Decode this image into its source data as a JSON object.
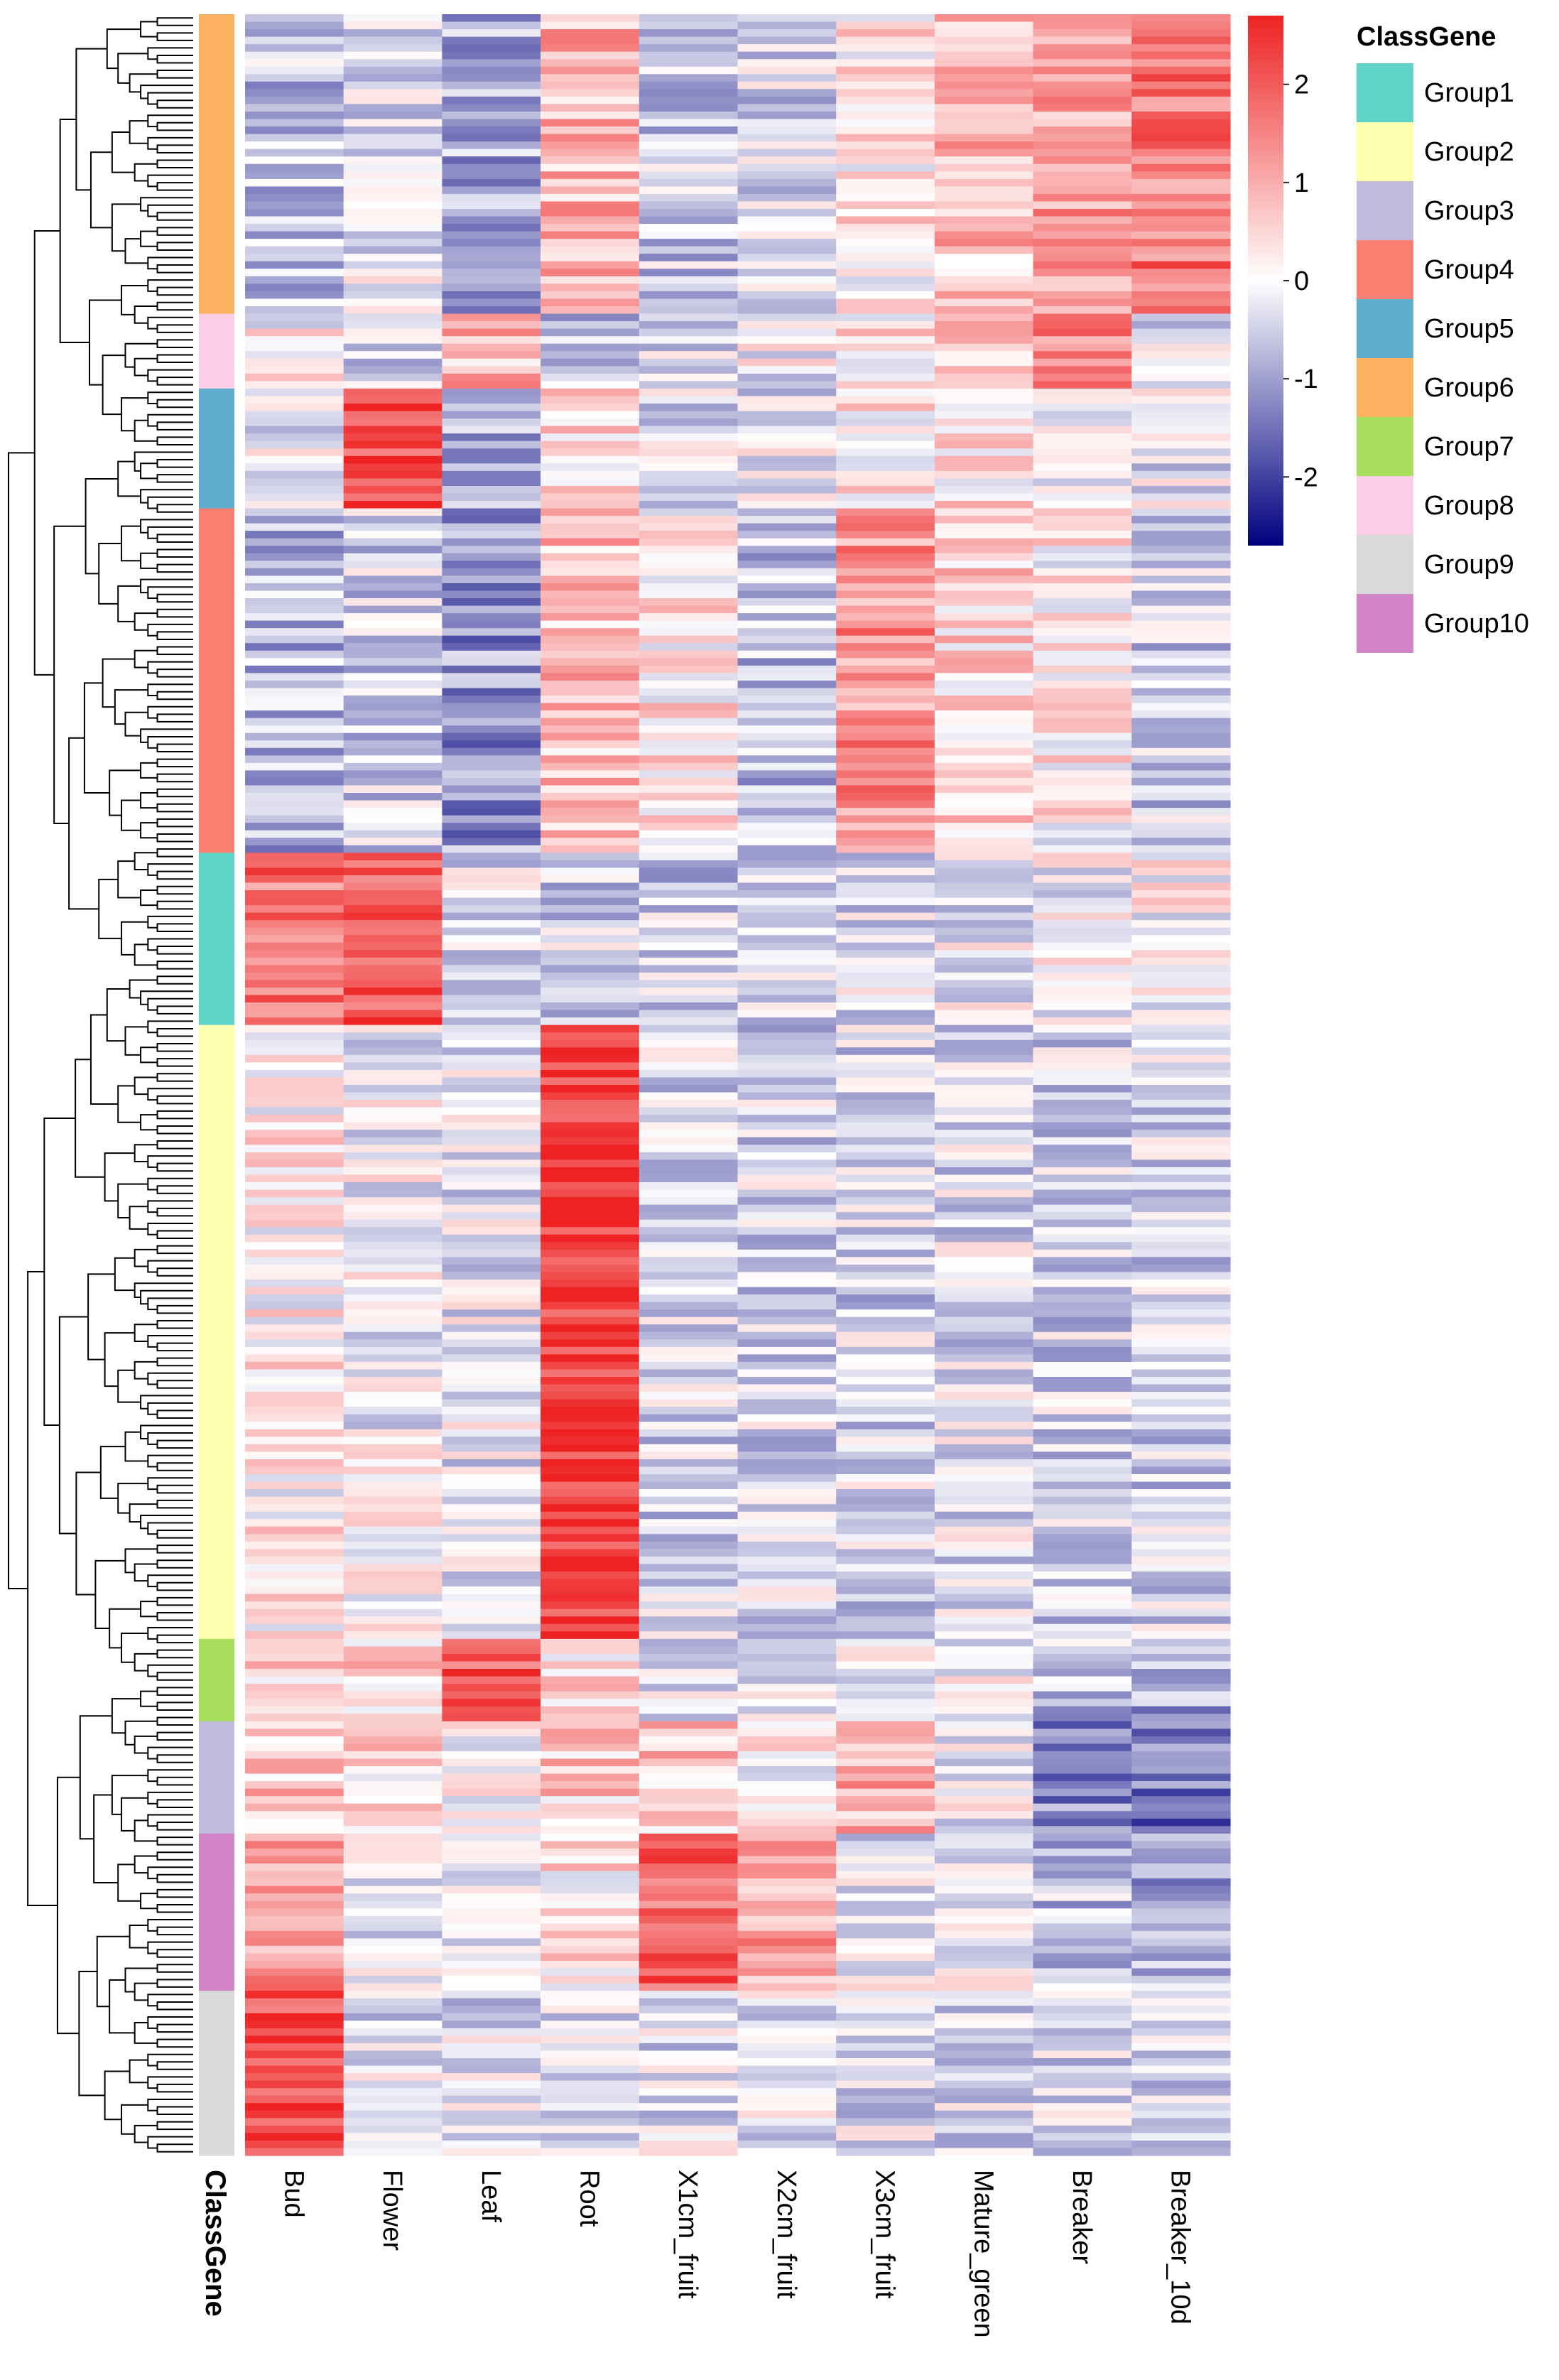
{
  "chart_data": {
    "type": "heatmap",
    "title": "",
    "samples": [
      "Bud",
      "Flower",
      "Leaf",
      "Root",
      "X1cm_fruit",
      "X2cm_fruit",
      "X3cm_fruit",
      "Mature_green",
      "Breaker",
      "Breaker_10d"
    ],
    "annotation_title": "ClassGene",
    "annotation_column_label": "ClassGene",
    "color_scale": {
      "min": -2.7,
      "max": 2.7,
      "low_color": "#000080",
      "mid_color": "#ffffff",
      "high_color": "#ee2222",
      "ticks": [
        2,
        1,
        0,
        -1,
        -2
      ],
      "tick_labels": [
        "2",
        "1",
        "0",
        "-1",
        "-2"
      ]
    },
    "groups": [
      {
        "name": "Group1",
        "color": "#5ed3c6"
      },
      {
        "name": "Group2",
        "color": "#ffffb0"
      },
      {
        "name": "Group3",
        "color": "#bfbbdc"
      },
      {
        "name": "Group4",
        "color": "#fa8072"
      },
      {
        "name": "Group5",
        "color": "#61add0"
      },
      {
        "name": "Group6",
        "color": "#fbb15f"
      },
      {
        "name": "Group7",
        "color": "#a7df5c"
      },
      {
        "name": "Group8",
        "color": "#fdcde6"
      },
      {
        "name": "Group9",
        "color": "#d9d9d9"
      },
      {
        "name": "Group10",
        "color": "#d285c6"
      }
    ],
    "row_blocks": [
      {
        "group": "Group6",
        "rows": 40,
        "profile": [
          -0.6,
          -0.2,
          -0.9,
          0.9,
          -0.5,
          -0.4,
          0.3,
          0.8,
          1.2,
          1.6
        ]
      },
      {
        "group": "Group8",
        "rows": 10,
        "profile": [
          0.1,
          -0.3,
          0.9,
          -0.6,
          -0.2,
          -0.1,
          0.4,
          0.9,
          1.5,
          -0.3
        ]
      },
      {
        "group": "Group5",
        "rows": 16,
        "profile": [
          -0.2,
          2.3,
          -0.8,
          0.4,
          -0.3,
          -0.2,
          0.2,
          0.4,
          -0.2,
          -0.2
        ]
      },
      {
        "group": "Group4",
        "rows": 46,
        "profile": [
          -0.8,
          -0.4,
          -1.1,
          0.8,
          0.3,
          -0.6,
          1.3,
          0.5,
          0.2,
          -0.5
        ]
      },
      {
        "group": "Group1",
        "rows": 23,
        "profile": [
          1.7,
          2.0,
          -0.3,
          -0.4,
          -0.5,
          -0.4,
          -0.3,
          -0.2,
          -0.1,
          0.1
        ]
      },
      {
        "group": "Group2",
        "rows": 82,
        "profile": [
          0.2,
          -0.1,
          -0.2,
          2.5,
          -0.4,
          -0.4,
          -0.4,
          -0.3,
          -0.4,
          -0.4
        ]
      },
      {
        "group": "Group7",
        "rows": 11,
        "profile": [
          0.6,
          0.5,
          1.9,
          0.4,
          -0.3,
          -0.2,
          -0.2,
          -0.1,
          -0.6,
          -0.9
        ]
      },
      {
        "group": "Group3",
        "rows": 15,
        "profile": [
          0.7,
          0.5,
          0.0,
          0.6,
          0.7,
          0.2,
          0.9,
          -0.1,
          -1.2,
          -1.5
        ]
      },
      {
        "group": "Group10",
        "rows": 21,
        "profile": [
          1.3,
          -0.2,
          -0.4,
          0.3,
          1.9,
          1.1,
          -0.2,
          -0.2,
          -0.6,
          -0.9
        ]
      },
      {
        "group": "Group9",
        "rows": 22,
        "profile": [
          2.3,
          -0.3,
          -0.3,
          -0.3,
          -0.3,
          -0.3,
          -0.3,
          -0.3,
          -0.3,
          -0.4
        ]
      }
    ]
  }
}
